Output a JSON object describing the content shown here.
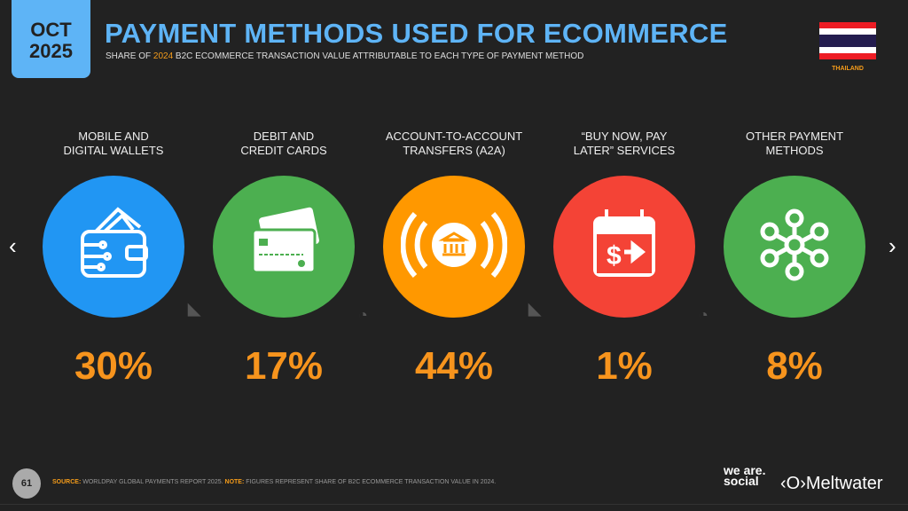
{
  "header": {
    "month": "OCT",
    "year": "2025",
    "title": "PAYMENT METHODS USED FOR ECOMMERCE",
    "subtitle_pre": "SHARE OF ",
    "subtitle_year": "2024",
    "subtitle_post": " B2C ECOMMERCE TRANSACTION VALUE ATTRIBUTABLE TO EACH TYPE OF PAYMENT METHOD",
    "country": "THAILAND"
  },
  "colors": {
    "accent": "#5eb4f6",
    "highlight": "#f7941d",
    "flag": [
      "#ed1c24",
      "#ffffff",
      "#241d4f",
      "#ffffff",
      "#ed1c24"
    ]
  },
  "items": [
    {
      "label1": "MOBILE AND",
      "label2": "DIGITAL WALLETS",
      "value": "30%",
      "color": "#2196f3",
      "icon": "wallet-icon"
    },
    {
      "label1": "DEBIT AND",
      "label2": "CREDIT CARDS",
      "value": "17%",
      "color": "#4caf50",
      "icon": "credit-card-icon"
    },
    {
      "label1": "ACCOUNT-TO-ACCOUNT",
      "label2": "TRANSFERS (A2A)",
      "value": "44%",
      "color": "#ff9800",
      "icon": "bank-transfer-icon"
    },
    {
      "label1": "“BUY NOW, PAY",
      "label2": "LATER” SERVICES",
      "value": "1%",
      "color": "#f44336",
      "icon": "calendar-dollar-icon"
    },
    {
      "label1": "OTHER PAYMENT",
      "label2": "METHODS",
      "value": "8%",
      "color": "#4caf50",
      "icon": "network-icon"
    }
  ],
  "nav": {
    "prev": "‹",
    "next": "›"
  },
  "footer": {
    "page": "61",
    "source_label": "SOURCE:",
    "source": " WORLDPAY GLOBAL PAYMENTS REPORT 2025. ",
    "note_label": "NOTE:",
    "note": " FIGURES REPRESENT SHARE OF B2C ECOMMERCE TRANSACTION VALUE IN 2024.",
    "brand1": "we are. social",
    "brand2": "Meltwater"
  }
}
